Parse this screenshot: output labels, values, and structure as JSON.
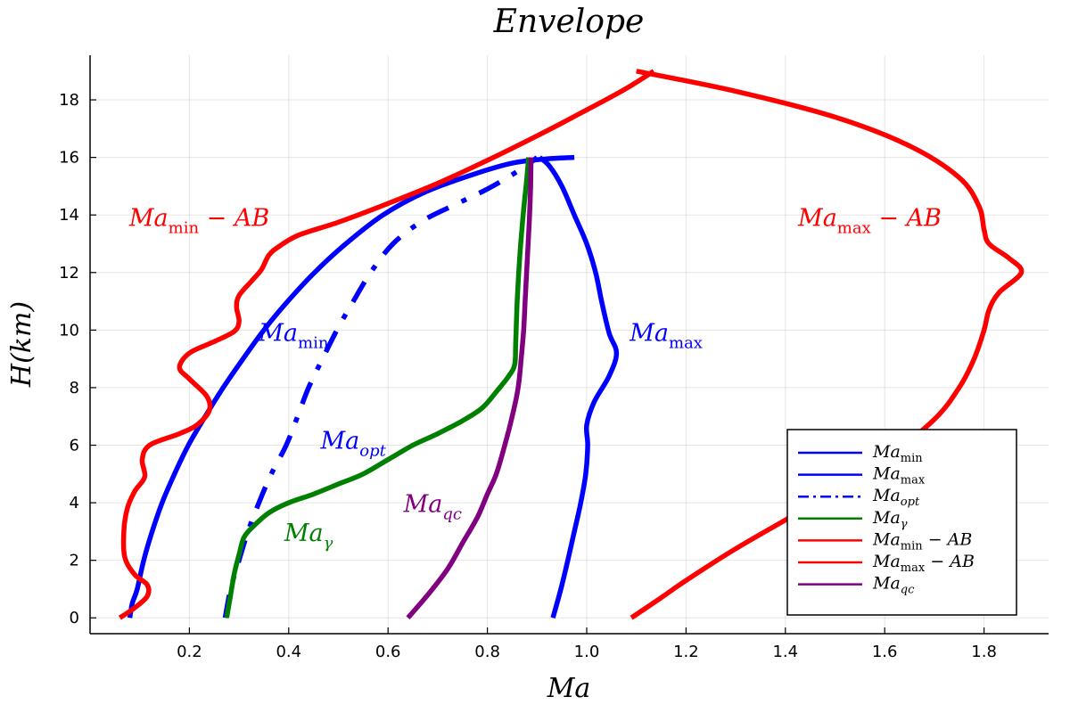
{
  "chart_data": {
    "type": "line",
    "title": "Envelope",
    "xlabel": "Ma",
    "ylabel": "H(km)",
    "xlim": [
      0.0,
      1.93
    ],
    "ylim": [
      -0.55,
      19.55
    ],
    "xticks": [
      0.2,
      0.4,
      0.6,
      0.8,
      1.0,
      1.2,
      1.4,
      1.6,
      1.8
    ],
    "xtick_labels": [
      "0.2",
      "0.4",
      "0.6",
      "0.8",
      "1.0",
      "1.2",
      "1.4",
      "1.6",
      "1.8"
    ],
    "yticks": [
      0,
      2,
      4,
      6,
      8,
      10,
      12,
      14,
      16,
      18
    ],
    "ytick_labels": [
      "0",
      "2",
      "4",
      "6",
      "8",
      "10",
      "12",
      "14",
      "16",
      "18"
    ],
    "grid": true,
    "legend_position": "bottom-right",
    "colors": {
      "blue": "#0000ff",
      "green": "#008000",
      "red": "#ff0000",
      "purple": "#800080"
    },
    "series": [
      {
        "name": "Ma_min",
        "color": "#0000ff",
        "dash": "solid",
        "points": [
          [
            0.08,
            0
          ],
          [
            0.085,
            0.5
          ],
          [
            0.095,
            1
          ],
          [
            0.108,
            2
          ],
          [
            0.125,
            3
          ],
          [
            0.145,
            4
          ],
          [
            0.17,
            5
          ],
          [
            0.198,
            6
          ],
          [
            0.232,
            7
          ],
          [
            0.268,
            8
          ],
          [
            0.308,
            9
          ],
          [
            0.35,
            10
          ],
          [
            0.398,
            11
          ],
          [
            0.452,
            12
          ],
          [
            0.515,
            13
          ],
          [
            0.59,
            14
          ],
          [
            0.675,
            14.8
          ],
          [
            0.77,
            15.4
          ],
          [
            0.85,
            15.8
          ],
          [
            0.92,
            15.95
          ],
          [
            0.975,
            16
          ]
        ]
      },
      {
        "name": "Ma_max",
        "color": "#0000ff",
        "dash": "solid",
        "points": [
          [
            0.932,
            0
          ],
          [
            0.948,
            1
          ],
          [
            0.962,
            2
          ],
          [
            0.975,
            3
          ],
          [
            0.988,
            4
          ],
          [
            0.998,
            5
          ],
          [
            1.002,
            6
          ],
          [
            1.0,
            6.7
          ],
          [
            1.015,
            7.5
          ],
          [
            1.045,
            8.4
          ],
          [
            1.06,
            9.2
          ],
          [
            1.045,
            9.9
          ],
          [
            1.03,
            11
          ],
          [
            1.018,
            12
          ],
          [
            1.0,
            13
          ],
          [
            0.975,
            14
          ],
          [
            0.95,
            15
          ],
          [
            0.925,
            15.7
          ],
          [
            0.905,
            16
          ]
        ]
      },
      {
        "name": "Ma_opt",
        "color": "#0000ff",
        "dash": "dashdot",
        "points": [
          [
            0.272,
            0
          ],
          [
            0.283,
            1
          ],
          [
            0.3,
            2
          ],
          [
            0.318,
            3
          ],
          [
            0.34,
            4
          ],
          [
            0.365,
            5
          ],
          [
            0.395,
            6
          ],
          [
            0.418,
            7
          ],
          [
            0.44,
            8
          ],
          [
            0.468,
            9
          ],
          [
            0.497,
            10
          ],
          [
            0.53,
            11
          ],
          [
            0.565,
            12
          ],
          [
            0.61,
            13
          ],
          [
            0.67,
            13.8
          ],
          [
            0.74,
            14.4
          ],
          [
            0.8,
            14.9
          ],
          [
            0.85,
            15.4
          ],
          [
            0.885,
            15.8
          ],
          [
            0.9,
            16
          ]
        ]
      },
      {
        "name": "Ma_gamma",
        "color": "#008000",
        "dash": "solid",
        "points": [
          [
            0.275,
            0
          ],
          [
            0.282,
            0.7
          ],
          [
            0.29,
            1.5
          ],
          [
            0.3,
            2.2
          ],
          [
            0.31,
            2.8
          ],
          [
            0.33,
            3.2
          ],
          [
            0.36,
            3.65
          ],
          [
            0.4,
            4
          ],
          [
            0.45,
            4.3
          ],
          [
            0.5,
            4.65
          ],
          [
            0.55,
            5
          ],
          [
            0.6,
            5.5
          ],
          [
            0.65,
            6
          ],
          [
            0.7,
            6.4
          ],
          [
            0.75,
            6.85
          ],
          [
            0.79,
            7.3
          ],
          [
            0.82,
            7.9
          ],
          [
            0.843,
            8.4
          ],
          [
            0.855,
            8.8
          ],
          [
            0.857,
            9.5
          ],
          [
            0.86,
            11
          ],
          [
            0.865,
            12.5
          ],
          [
            0.872,
            14
          ],
          [
            0.879,
            15.2
          ],
          [
            0.883,
            16
          ]
        ]
      },
      {
        "name": "Ma_min - AB",
        "color": "#ff0000",
        "dash": "solid",
        "points": [
          [
            0.06,
            0
          ],
          [
            0.09,
            0.35
          ],
          [
            0.115,
            0.75
          ],
          [
            0.115,
            1.15
          ],
          [
            0.09,
            1.5
          ],
          [
            0.07,
            2.1
          ],
          [
            0.068,
            3
          ],
          [
            0.075,
            3.8
          ],
          [
            0.09,
            4.4
          ],
          [
            0.11,
            4.9
          ],
          [
            0.105,
            5.5
          ],
          [
            0.12,
            6
          ],
          [
            0.18,
            6.4
          ],
          [
            0.215,
            6.7
          ],
          [
            0.24,
            7.2
          ],
          [
            0.235,
            7.7
          ],
          [
            0.2,
            8.3
          ],
          [
            0.18,
            8.7
          ],
          [
            0.2,
            9.2
          ],
          [
            0.25,
            9.6
          ],
          [
            0.29,
            9.95
          ],
          [
            0.3,
            10.3
          ],
          [
            0.295,
            10.8
          ],
          [
            0.3,
            11.2
          ],
          [
            0.325,
            11.7
          ],
          [
            0.345,
            12.1
          ],
          [
            0.36,
            12.6
          ],
          [
            0.38,
            12.9
          ],
          [
            0.42,
            13.3
          ],
          [
            0.5,
            13.75
          ],
          [
            0.6,
            14.4
          ],
          [
            0.7,
            15.1
          ],
          [
            0.8,
            15.9
          ],
          [
            0.9,
            16.75
          ],
          [
            1.0,
            17.65
          ],
          [
            1.08,
            18.4
          ],
          [
            1.135,
            19
          ]
        ]
      },
      {
        "name": "Ma_max - AB",
        "color": "#ff0000",
        "dash": "solid",
        "points": [
          [
            1.09,
            0
          ],
          [
            1.15,
            0.7
          ],
          [
            1.2,
            1.3
          ],
          [
            1.3,
            2.4
          ],
          [
            1.4,
            3.4
          ],
          [
            1.5,
            4.4
          ],
          [
            1.6,
            5.5
          ],
          [
            1.7,
            6.9
          ],
          [
            1.75,
            8
          ],
          [
            1.78,
            9
          ],
          [
            1.8,
            10
          ],
          [
            1.81,
            10.7
          ],
          [
            1.83,
            11.3
          ],
          [
            1.875,
            12
          ],
          [
            1.85,
            12.5
          ],
          [
            1.81,
            13
          ],
          [
            1.8,
            13.5
          ],
          [
            1.79,
            14.3
          ],
          [
            1.75,
            15.3
          ],
          [
            1.65,
            16.4
          ],
          [
            1.5,
            17.4
          ],
          [
            1.3,
            18.3
          ],
          [
            1.1,
            19
          ]
        ]
      },
      {
        "name": "Ma_qc",
        "color": "#800080",
        "dash": "solid",
        "points": [
          [
            0.64,
            0
          ],
          [
            0.68,
            0.8
          ],
          [
            0.72,
            1.7
          ],
          [
            0.75,
            2.6
          ],
          [
            0.78,
            3.5
          ],
          [
            0.8,
            4.3
          ],
          [
            0.818,
            5
          ],
          [
            0.835,
            6
          ],
          [
            0.85,
            7
          ],
          [
            0.862,
            8
          ],
          [
            0.868,
            9
          ],
          [
            0.873,
            10
          ],
          [
            0.876,
            11
          ],
          [
            0.879,
            12
          ],
          [
            0.882,
            13
          ],
          [
            0.885,
            14
          ],
          [
            0.887,
            15
          ],
          [
            0.888,
            16
          ]
        ]
      }
    ],
    "annotations": [
      {
        "base": "Ma",
        "sub": "min",
        "suffix": " − AB",
        "x": 0.22,
        "y": 13.9,
        "color": "#ff0000"
      },
      {
        "base": "Ma",
        "sub": "max",
        "suffix": " − AB",
        "x": 1.57,
        "y": 13.9,
        "color": "#ff0000"
      },
      {
        "base": "Ma",
        "sub": "min",
        "suffix": "",
        "x": 0.41,
        "y": 9.9,
        "color": "#0000ff"
      },
      {
        "base": "Ma",
        "sub": "max",
        "suffix": "",
        "x": 1.16,
        "y": 9.9,
        "color": "#0000ff"
      },
      {
        "base": "Ma",
        "sub": "opt",
        "suffix": "",
        "x": 0.53,
        "y": 6.15,
        "color": "#0000ff"
      },
      {
        "base": "Ma",
        "sub": "qc",
        "suffix": "",
        "x": 0.69,
        "y": 3.95,
        "color": "#800080"
      },
      {
        "base": "Ma",
        "sub": "γ",
        "suffix": "",
        "x": 0.44,
        "y": 2.95,
        "color": "#008000"
      }
    ],
    "legend": [
      {
        "base": "Ma",
        "sub": "min",
        "suffix": "",
        "color": "#0000ff",
        "dash": "solid"
      },
      {
        "base": "Ma",
        "sub": "max",
        "suffix": "",
        "color": "#0000ff",
        "dash": "solid"
      },
      {
        "base": "Ma",
        "sub": "opt",
        "suffix": "",
        "color": "#0000ff",
        "dash": "dashdot"
      },
      {
        "base": "Ma",
        "sub": "γ",
        "suffix": "",
        "color": "#008000",
        "dash": "solid"
      },
      {
        "base": "Ma",
        "sub": "min",
        "suffix": " − AB",
        "color": "#ff0000",
        "dash": "solid"
      },
      {
        "base": "Ma",
        "sub": "max",
        "suffix": " − AB",
        "color": "#ff0000",
        "dash": "solid"
      },
      {
        "base": "Ma",
        "sub": "qc",
        "suffix": "",
        "color": "#800080",
        "dash": "solid"
      }
    ]
  }
}
